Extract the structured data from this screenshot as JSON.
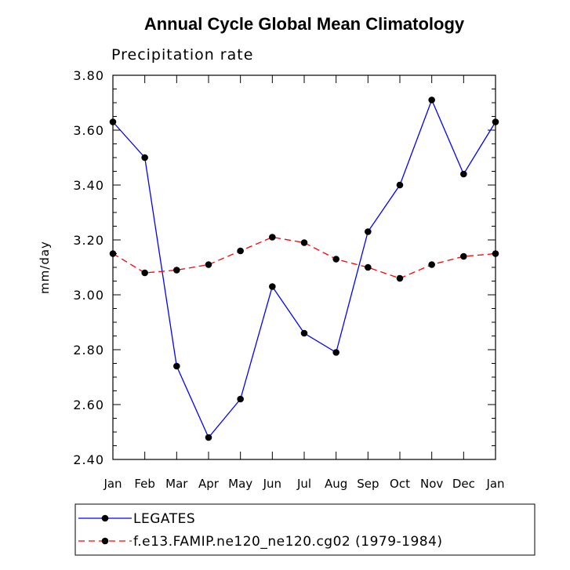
{
  "chart_data": {
    "type": "line",
    "title": "Annual Cycle Global Mean Climatology",
    "subtitle": "Precipitation rate",
    "xlabel": "",
    "ylabel": "mm/day",
    "categories": [
      "Jan",
      "Feb",
      "Mar",
      "Apr",
      "May",
      "Jun",
      "Jul",
      "Aug",
      "Sep",
      "Oct",
      "Nov",
      "Dec",
      "Jan"
    ],
    "ylim": [
      2.4,
      3.8
    ],
    "yticks": [
      "2.40",
      "2.60",
      "2.80",
      "3.00",
      "3.20",
      "3.40",
      "3.60",
      "3.80"
    ],
    "series": [
      {
        "name": "LEGATES",
        "color": "#0000ff",
        "dash": "solid",
        "values": [
          3.63,
          3.5,
          2.74,
          2.48,
          2.62,
          3.03,
          2.86,
          2.79,
          3.23,
          3.4,
          3.71,
          3.44,
          3.63
        ]
      },
      {
        "name": "f.e13.FAMIP.ne120_ne120.cg02 (1979-1984)",
        "color": "#ff0000",
        "dash": "dashed",
        "values": [
          3.15,
          3.08,
          3.09,
          3.11,
          3.16,
          3.21,
          3.19,
          3.13,
          3.1,
          3.06,
          3.11,
          3.14,
          3.15
        ]
      }
    ],
    "grid": false,
    "legend_position": "bottom"
  }
}
